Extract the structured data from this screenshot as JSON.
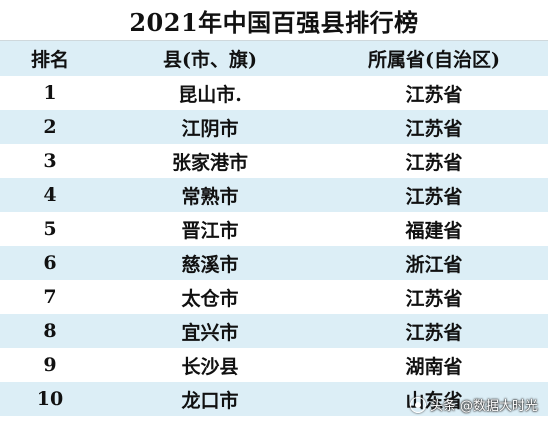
{
  "title": "2021年中国百强县排行榜",
  "headers": {
    "rank": "排名",
    "county": "县(市、旗)",
    "province": "所属省(自治区)"
  },
  "rows": [
    {
      "rank": "1",
      "county": "昆山市.",
      "province": "江苏省"
    },
    {
      "rank": "2",
      "county": "江阴市",
      "province": "江苏省"
    },
    {
      "rank": "3",
      "county": "张家港市",
      "province": "江苏省"
    },
    {
      "rank": "4",
      "county": "常熟市",
      "province": "江苏省"
    },
    {
      "rank": "5",
      "county": "晋江市",
      "province": "福建省"
    },
    {
      "rank": "6",
      "county": "慈溪市",
      "province": "浙江省"
    },
    {
      "rank": "7",
      "county": "太仓市",
      "province": "江苏省"
    },
    {
      "rank": "8",
      "county": "宜兴市",
      "province": "江苏省"
    },
    {
      "rank": "9",
      "county": "长沙县",
      "province": "湖南省"
    },
    {
      "rank": "10",
      "county": "龙口市",
      "province": "山东省"
    }
  ],
  "watermark": {
    "prefix": "头条",
    "text": "@数据大时光"
  },
  "colors": {
    "shade": "#dceef6",
    "text": "#111111"
  }
}
